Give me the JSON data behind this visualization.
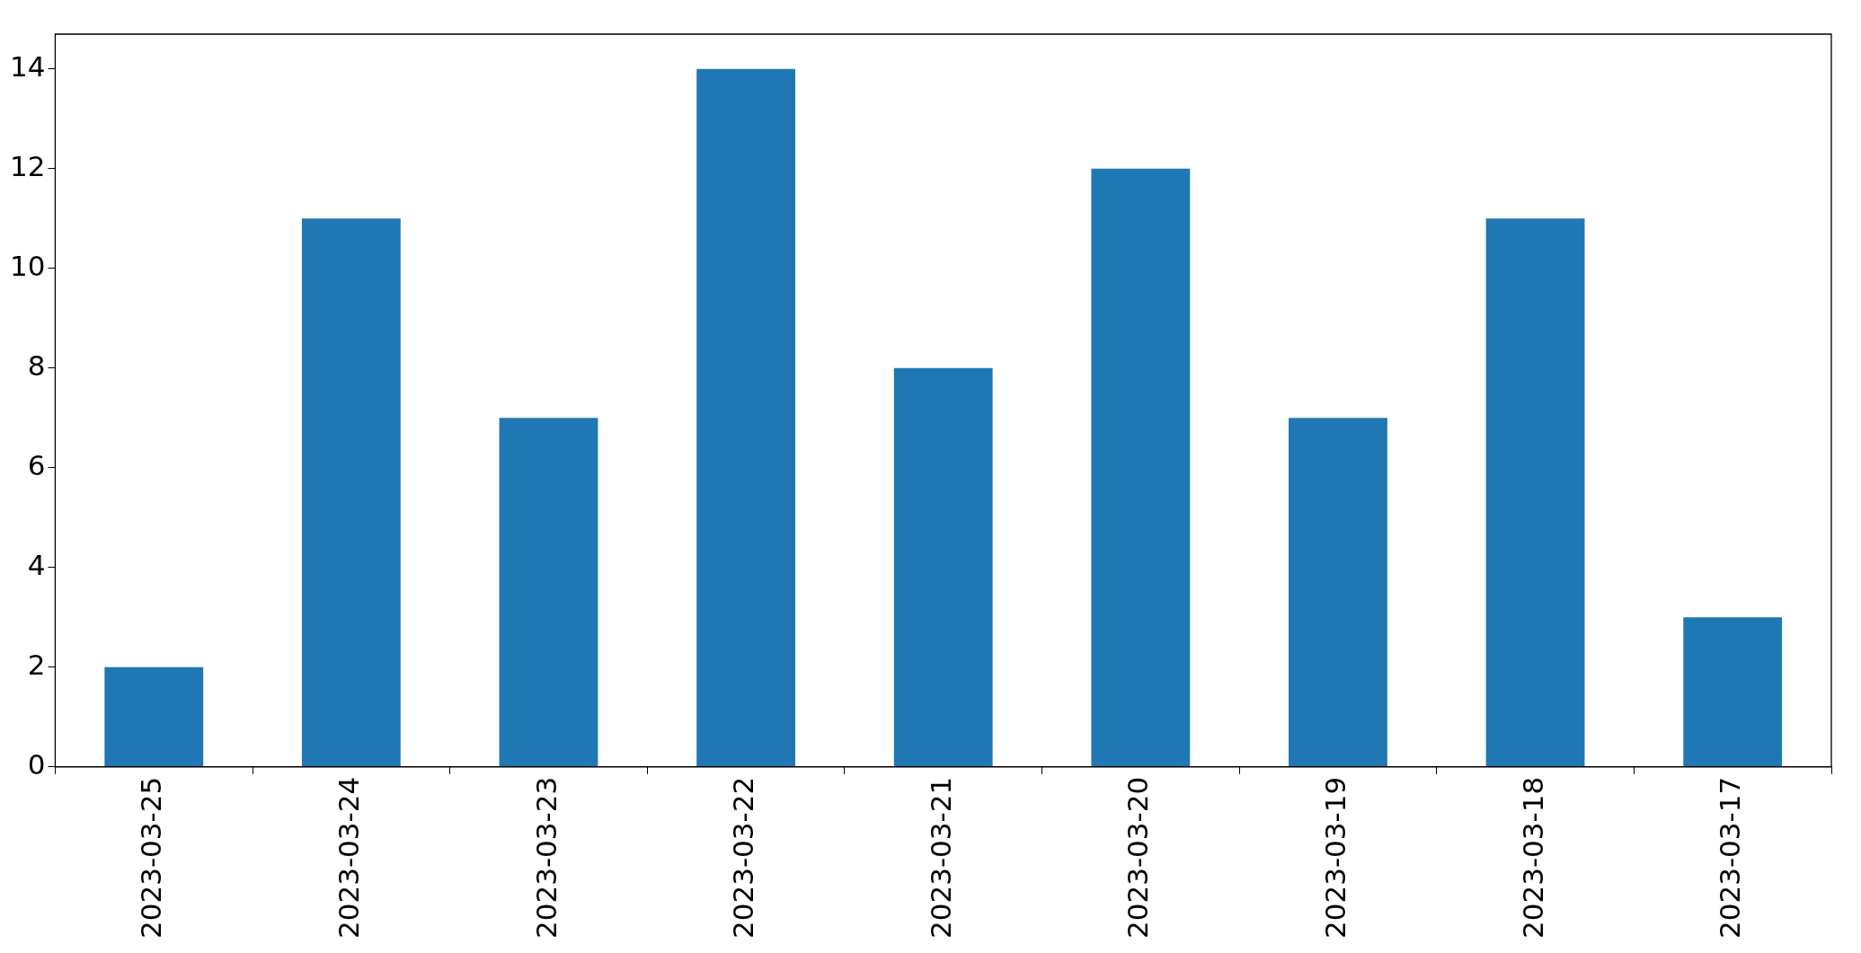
{
  "chart_data": {
    "type": "bar",
    "categories": [
      "2023-03-25",
      "2023-03-24",
      "2023-03-23",
      "2023-03-22",
      "2023-03-21",
      "2023-03-20",
      "2023-03-19",
      "2023-03-18",
      "2023-03-17"
    ],
    "values": [
      2,
      11,
      7,
      14,
      8,
      12,
      7,
      11,
      3
    ],
    "color": "#1f77b4",
    "ylim": [
      0,
      14.7
    ],
    "yticks": [
      0,
      2,
      4,
      6,
      8,
      10,
      12,
      14
    ],
    "grid": false,
    "legend": false
  }
}
